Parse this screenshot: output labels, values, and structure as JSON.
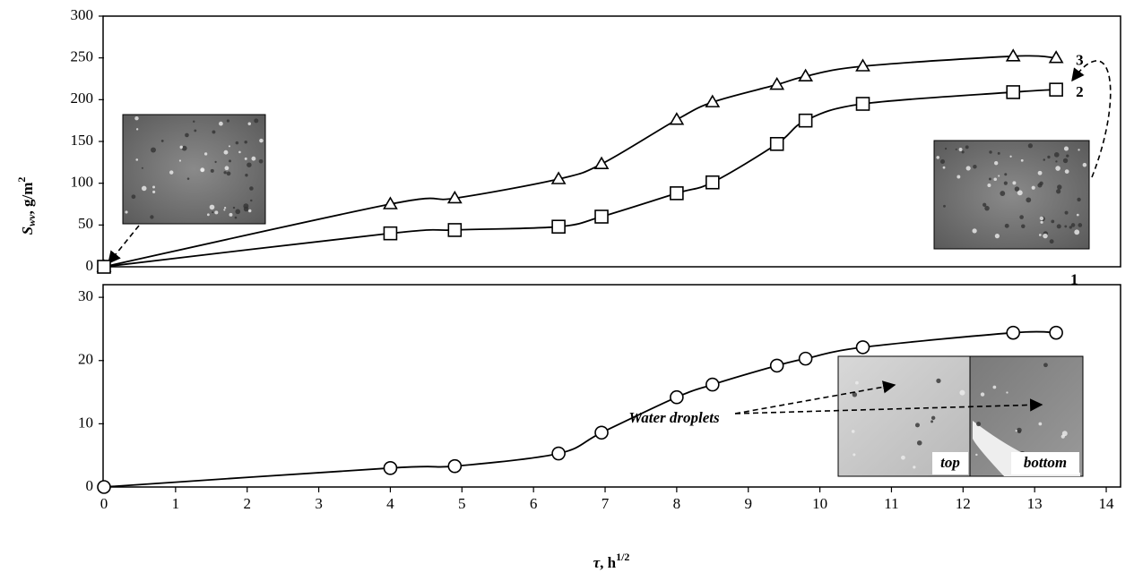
{
  "chart_data": [
    {
      "type": "line",
      "ylabel": [
        "S",
        "wv",
        ", g/m",
        "2"
      ],
      "xlim": [
        0,
        14.2
      ],
      "ylim": [
        0,
        300
      ],
      "yticks": [
        0,
        50,
        100,
        150,
        200,
        250,
        300
      ],
      "series": [
        {
          "name": "3",
          "color": "#000000",
          "marker": "triangle",
          "x": [
            0,
            4.0,
            4.9,
            6.35,
            6.95,
            8.0,
            8.5,
            9.4,
            9.8,
            10.6,
            12.7,
            13.3
          ],
          "values": [
            0,
            75,
            82,
            105,
            123,
            176,
            197,
            218,
            228,
            240,
            252,
            250
          ]
        },
        {
          "name": "2",
          "color": "#000000",
          "marker": "square",
          "x": [
            0,
            4.0,
            4.9,
            6.35,
            6.95,
            8.0,
            8.5,
            9.4,
            9.8,
            10.6,
            12.7,
            13.3
          ],
          "values": [
            0,
            40,
            44,
            48,
            60,
            88,
            101,
            147,
            175,
            195,
            209,
            212
          ]
        }
      ]
    },
    {
      "type": "line",
      "xlabel": [
        "τ",
        ", h",
        "1/2"
      ],
      "xlim": [
        0,
        14.2
      ],
      "ylim": [
        0,
        32
      ],
      "xticks": [
        0,
        1,
        2,
        3,
        4,
        5,
        6,
        7,
        8,
        9,
        10,
        11,
        12,
        13,
        14
      ],
      "yticks": [
        0,
        10,
        20,
        30
      ],
      "annotations": [
        "Water droplets",
        "top",
        "bottom"
      ],
      "series": [
        {
          "name": "1",
          "color": "#000000",
          "marker": "circle",
          "x": [
            0,
            4.0,
            4.9,
            6.35,
            6.95,
            8.0,
            8.5,
            9.4,
            9.8,
            10.6,
            12.7,
            13.3
          ],
          "values": [
            0,
            3.0,
            3.3,
            5.3,
            8.6,
            14.2,
            16.2,
            19.2,
            20.3,
            22.1,
            24.4,
            24.4
          ]
        }
      ]
    }
  ]
}
